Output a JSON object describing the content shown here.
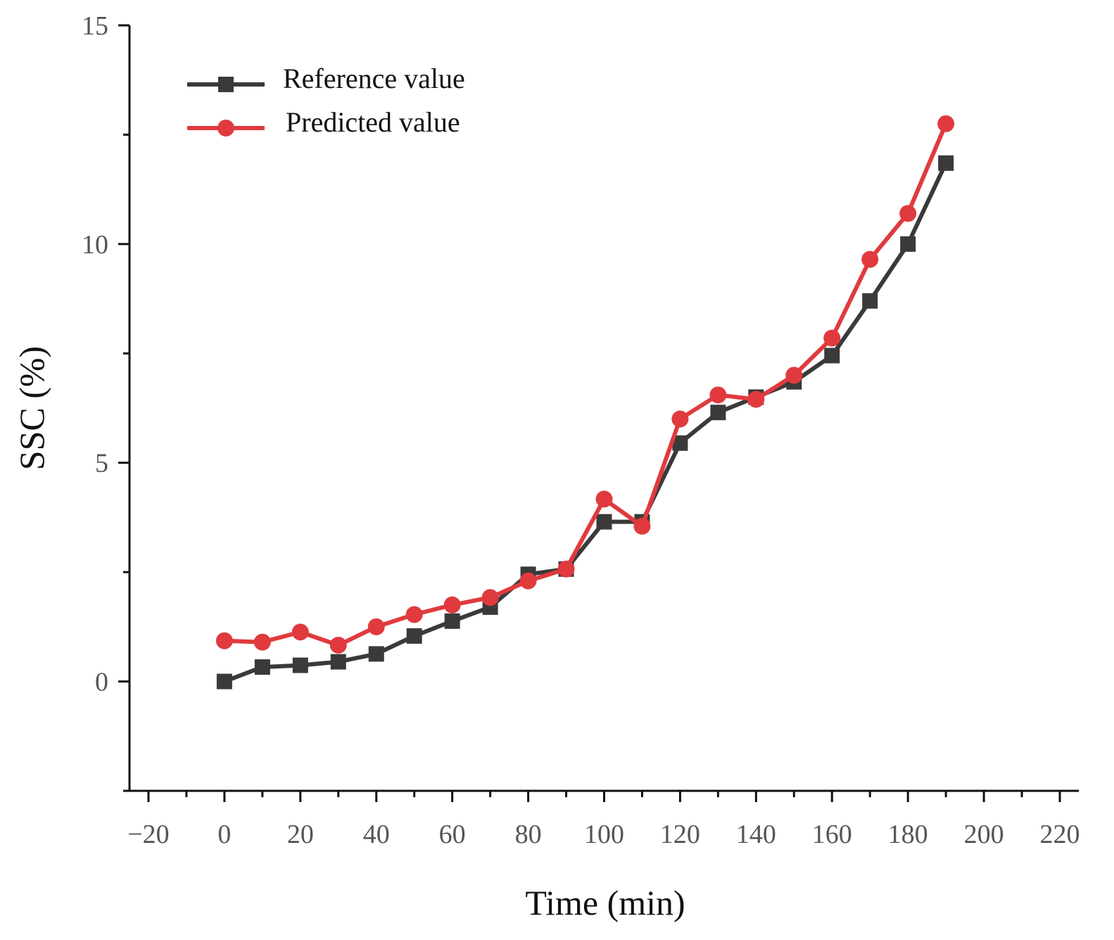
{
  "chart_data": {
    "type": "line",
    "title": "",
    "xlabel": "Time (min)",
    "ylabel": "SSC (%)",
    "xlim": [
      -25,
      225
    ],
    "ylim": [
      -2.5,
      15
    ],
    "xticks": [
      -20,
      0,
      20,
      40,
      60,
      80,
      100,
      120,
      140,
      160,
      180,
      200,
      220
    ],
    "yticks": [
      0,
      5,
      10,
      15
    ],
    "xtick_labels": [
      "−20",
      "0",
      "20",
      "40",
      "60",
      "80",
      "100",
      "120",
      "140",
      "160",
      "180",
      "200",
      "220"
    ],
    "ytick_labels": [
      "0",
      "5",
      "10",
      "15"
    ],
    "x": [
      0,
      10,
      20,
      30,
      40,
      50,
      60,
      70,
      80,
      90,
      100,
      110,
      120,
      130,
      140,
      150,
      160,
      170,
      180,
      190
    ],
    "legend_position": "top-left",
    "grid": false,
    "series": [
      {
        "name": "Reference value",
        "color": "#3a3a3a",
        "marker": "square",
        "values": [
          0.0,
          0.33,
          0.37,
          0.45,
          0.63,
          1.04,
          1.38,
          1.7,
          2.45,
          2.57,
          3.65,
          3.65,
          5.45,
          6.15,
          6.5,
          6.85,
          7.45,
          8.7,
          10.0,
          11.85
        ]
      },
      {
        "name": "Predicted value",
        "color": "#e03a3e",
        "marker": "circle",
        "values": [
          0.93,
          0.9,
          1.13,
          0.83,
          1.25,
          1.53,
          1.75,
          1.92,
          2.3,
          2.57,
          4.17,
          3.55,
          6.0,
          6.55,
          6.45,
          7.0,
          7.85,
          9.65,
          10.7,
          12.75
        ]
      }
    ]
  }
}
